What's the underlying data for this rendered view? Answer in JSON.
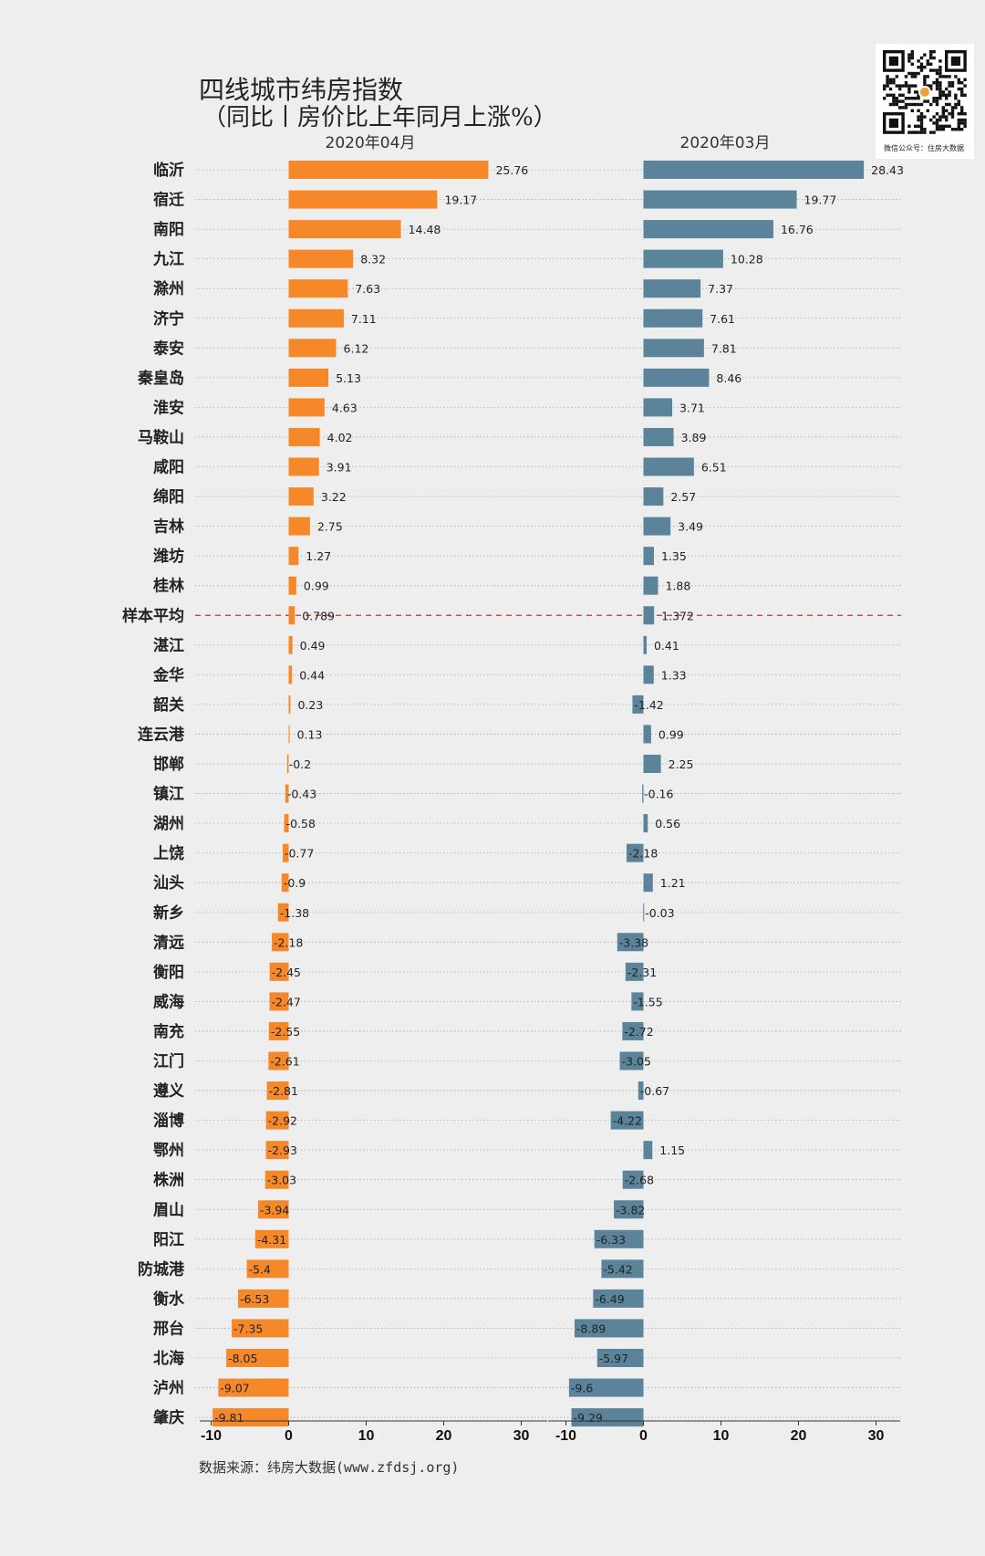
{
  "chart_data": {
    "type": "bar",
    "orientation": "horizontal",
    "title": "四线城市纬房指数",
    "subtitle": "（同比丨房价比上年同月上涨%）",
    "source": "数据来源：纬房大数据(www.zfdsj.org)",
    "categories": [
      "临沂",
      "宿迁",
      "南阳",
      "九江",
      "滁州",
      "济宁",
      "泰安",
      "秦皇岛",
      "淮安",
      "马鞍山",
      "咸阳",
      "绵阳",
      "吉林",
      "潍坊",
      "桂林",
      "样本平均",
      "湛江",
      "金华",
      "韶关",
      "连云港",
      "邯郸",
      "镇江",
      "湖州",
      "上饶",
      "汕头",
      "新乡",
      "清远",
      "衡阳",
      "威海",
      "南充",
      "江门",
      "遵义",
      "淄博",
      "鄂州",
      "株洲",
      "眉山",
      "阳江",
      "防城港",
      "衡水",
      "邢台",
      "北海",
      "泸州",
      "肇庆"
    ],
    "average_category": "样本平均",
    "series": [
      {
        "name": "2020年04月",
        "color": "#f5892a",
        "values": [
          25.76,
          19.17,
          14.48,
          8.32,
          7.63,
          7.11,
          6.12,
          5.13,
          4.63,
          4.02,
          3.91,
          3.22,
          2.75,
          1.27,
          0.99,
          0.789,
          0.49,
          0.44,
          0.23,
          0.13,
          -0.2,
          -0.43,
          -0.58,
          -0.77,
          -0.9,
          -1.38,
          -2.18,
          -2.45,
          -2.47,
          -2.55,
          -2.61,
          -2.81,
          -2.92,
          -2.93,
          -3.03,
          -3.94,
          -4.31,
          -5.4,
          -6.53,
          -7.35,
          -8.05,
          -9.07,
          -9.81
        ],
        "labels": [
          "25.76",
          "19.17",
          "14.48",
          "8.32",
          "7.63",
          "7.11",
          "6.12",
          "5.13",
          "4.63",
          "4.02",
          "3.91",
          "3.22",
          "2.75",
          "1.27",
          "0.99",
          "0.789",
          "0.49",
          "0.44",
          "0.23",
          "0.13",
          "-0.2",
          "-0.43",
          "-0.58",
          "-0.77",
          "-0.9",
          "-1.38",
          "-2.18",
          "-2.45",
          "-2.47",
          "-2.55",
          "-2.61",
          "-2.81",
          "-2.92",
          "-2.93",
          "-3.03",
          "-3.94",
          "-4.31",
          "-5.4",
          "-6.53",
          "-7.35",
          "-8.05",
          "-9.07",
          "-9.81"
        ]
      },
      {
        "name": "2020年03月",
        "color": "#5b8399",
        "values": [
          28.43,
          19.77,
          16.76,
          10.28,
          7.37,
          7.61,
          7.81,
          8.46,
          3.71,
          3.89,
          6.51,
          2.57,
          3.49,
          1.35,
          1.88,
          1.372,
          0.41,
          1.33,
          -1.42,
          0.99,
          2.25,
          -0.16,
          0.56,
          -2.18,
          1.21,
          -0.03,
          -3.38,
          -2.31,
          -1.55,
          -2.72,
          -3.05,
          -0.67,
          -4.22,
          1.15,
          -2.68,
          -3.82,
          -6.33,
          -5.42,
          -6.49,
          -8.89,
          -5.97,
          -9.6,
          -9.29
        ],
        "labels": [
          "28.43",
          "19.77",
          "16.76",
          "10.28",
          "7.37",
          "7.61",
          "7.81",
          "8.46",
          "3.71",
          "3.89",
          "6.51",
          "2.57",
          "3.49",
          "1.35",
          "1.88",
          "1.372",
          "0.41",
          "1.33",
          "-1.42",
          "0.99",
          "2.25",
          "-0.16",
          "0.56",
          "-2.18",
          "1.21",
          "-0.03",
          "-3.38",
          "-2.31",
          "-1.55",
          "-2.72",
          "-3.05",
          "-0.67",
          "-4.22",
          "1.15",
          "-2.68",
          "-3.82",
          "-6.33",
          "-5.42",
          "-6.49",
          "-8.89",
          "-5.97",
          "-9.6",
          "-9.29"
        ]
      }
    ],
    "xlim": [
      -11,
      34
    ],
    "xticks": [
      -10,
      0,
      10,
      20,
      30
    ],
    "xtick_labels": [
      "-10",
      "0",
      "10",
      "20",
      "30"
    ],
    "gridlines": "dotted horizontal per row",
    "average_line_color": "#c0392b"
  },
  "qr": {
    "caption": "微信公众号：住房大数据"
  }
}
